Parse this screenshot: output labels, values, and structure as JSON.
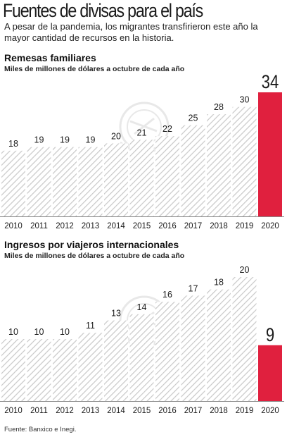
{
  "header": {
    "title": "Fuentes de divisas para el país",
    "subtitle": "A pesar de la pandemia, los migrantes transfirieron este año la mayor cantidad de recursos en la historia."
  },
  "colors": {
    "hatch": "#c8c8c8",
    "highlight": "#e0203e",
    "axis": "#8a8a8a",
    "text": "#1a1a1a"
  },
  "chart_data": [
    {
      "type": "bar",
      "title": "Remesas familiares",
      "subtitle": "Miles de millones de dólares a octubre de cada año",
      "categories": [
        "2010",
        "2011",
        "2012",
        "2013",
        "2014",
        "2015",
        "2016",
        "2017",
        "2018",
        "2019",
        "2020"
      ],
      "values": [
        18,
        19,
        19,
        19,
        20,
        21,
        22,
        25,
        28,
        30,
        34
      ],
      "value_labels": [
        "18",
        "19",
        "19",
        "19",
        "20",
        "21",
        "22",
        "25",
        "28",
        "30",
        "34"
      ],
      "highlight_index": 10,
      "ylim": [
        0,
        34
      ]
    },
    {
      "type": "bar",
      "title": "Ingresos por viajeros internacionales",
      "subtitle": "Miles de millones de dólares a octubre de cada año",
      "categories": [
        "2010",
        "2011",
        "2012",
        "2013",
        "2014",
        "2015",
        "2016",
        "2017",
        "2018",
        "2019",
        "2020"
      ],
      "values": [
        10,
        10,
        10,
        11,
        13,
        14,
        16,
        17,
        18,
        20,
        9
      ],
      "value_labels": [
        "10",
        "10",
        "10",
        "11",
        "13",
        "14",
        "16",
        "17",
        "18",
        "20",
        "9"
      ],
      "highlight_index": 10,
      "ylim": [
        0,
        20
      ]
    }
  ],
  "footer": {
    "source": "Fuente: Banxico e Inegi."
  }
}
